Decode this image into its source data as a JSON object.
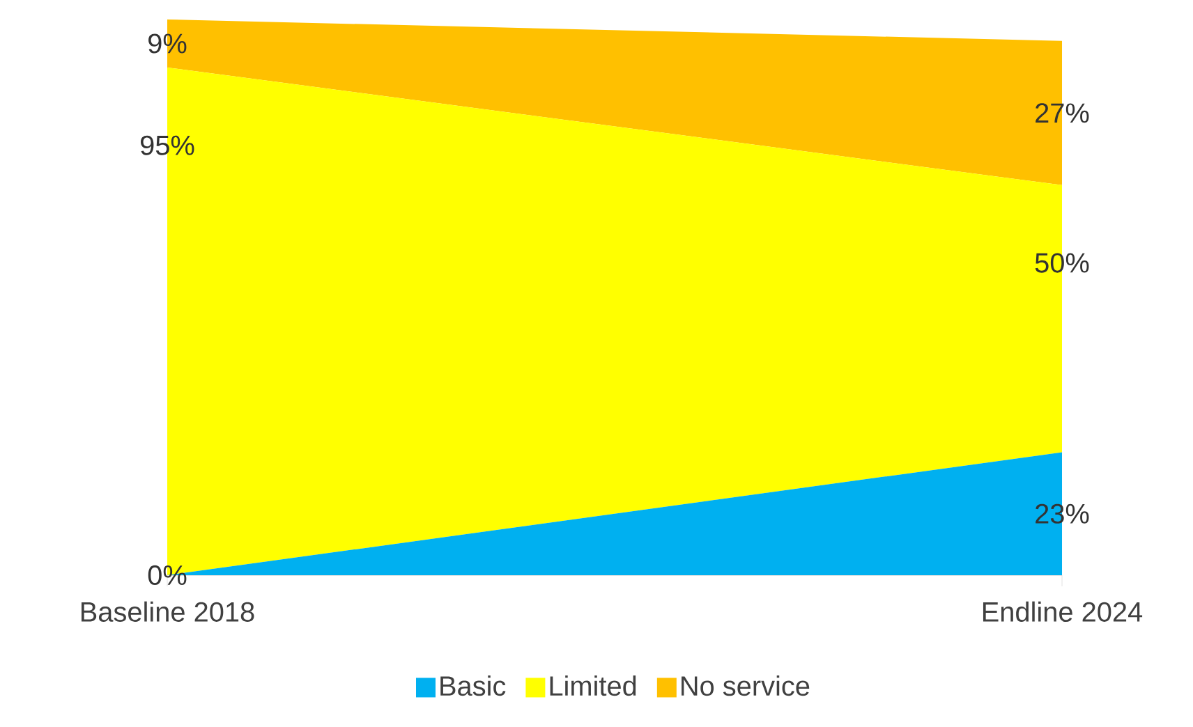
{
  "chart_data": {
    "type": "area",
    "stacked": true,
    "categories": [
      "Baseline 2018",
      "Endline 2024"
    ],
    "series": [
      {
        "name": "Basic",
        "color": "#00b0f0",
        "values": [
          0,
          23
        ],
        "value_labels": [
          "0%",
          "23%"
        ]
      },
      {
        "name": "Limited",
        "color": "#ffff00",
        "values": [
          95,
          50
        ],
        "value_labels": [
          "95%",
          "50%"
        ]
      },
      {
        "name": "No service",
        "color": "#ffc000",
        "values": [
          9,
          27
        ],
        "value_labels": [
          "9%",
          "27%"
        ]
      }
    ],
    "legend": "bottom"
  }
}
